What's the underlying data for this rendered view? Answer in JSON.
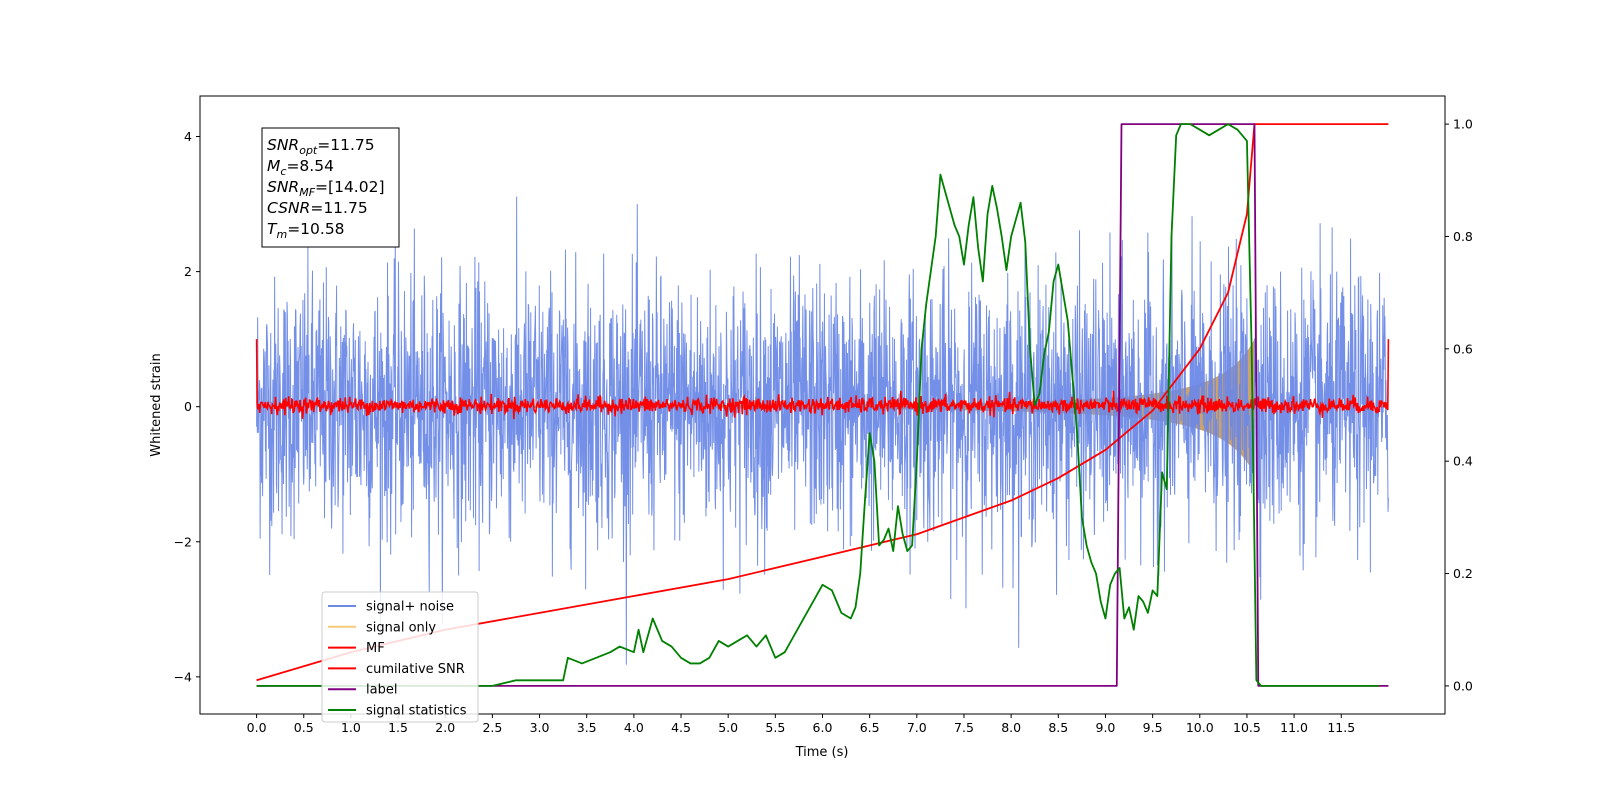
{
  "chart_data": {
    "type": "line",
    "xlabel": "Time (s)",
    "ylabel": "Whitened strain",
    "xlim": [
      -0.6,
      12.6
    ],
    "ylim": [
      -4.55,
      4.6
    ],
    "y2lim": [
      -0.05,
      1.05
    ],
    "x_ticks": [
      "0.0",
      "0.5",
      "1.0",
      "1.5",
      "2.0",
      "2.5",
      "3.0",
      "3.5",
      "4.0",
      "4.5",
      "5.0",
      "5.5",
      "6.0",
      "6.5",
      "7.0",
      "7.5",
      "8.0",
      "8.5",
      "9.0",
      "9.5",
      "10.0",
      "10.5",
      "11.0",
      "11.5"
    ],
    "y_ticks": [
      "−4",
      "−2",
      "0",
      "2",
      "4"
    ],
    "y2_ticks": [
      "0.0",
      "0.2",
      "0.4",
      "0.6",
      "0.8",
      "1.0"
    ],
    "legend_position": "lower-left",
    "annotation": {
      "lines": [
        {
          "base": "SNR",
          "sub": "opt",
          "value": "=11.75"
        },
        {
          "base": "M",
          "sub": "c",
          "value": "=8.54"
        },
        {
          "base": "SNR",
          "sub": "MF",
          "value": "=[14.02]"
        },
        {
          "base": "CSNR",
          "sub": "",
          "value": "=11.75"
        },
        {
          "base": "T",
          "sub": "m",
          "value": "=10.58"
        }
      ]
    },
    "series": [
      {
        "name": "signal+ noise",
        "axis": "left",
        "color": "#6b89e6",
        "noise_amplitude": 2.0,
        "x_range": [
          0,
          12.0
        ]
      },
      {
        "name": "signal only",
        "axis": "left",
        "color": "#f5c97a",
        "envelope_amplitude_end": 1.0,
        "merger_time": 10.58
      },
      {
        "name": "MF",
        "axis": "left",
        "color": "#ff0000",
        "noise_amplitude": 0.12,
        "edge_value": 1.0
      },
      {
        "name": "cumilative SNR",
        "axis": "right",
        "color": "#ff0000",
        "x": [
          0.0,
          1.0,
          2.0,
          3.0,
          4.0,
          5.0,
          6.0,
          7.0,
          7.5,
          8.0,
          8.5,
          9.0,
          9.5,
          10.0,
          10.3,
          10.5,
          10.58,
          12.0
        ],
        "y": [
          0.01,
          0.06,
          0.1,
          0.13,
          0.16,
          0.19,
          0.23,
          0.27,
          0.3,
          0.33,
          0.37,
          0.42,
          0.49,
          0.6,
          0.7,
          0.84,
          1.0,
          1.0
        ]
      },
      {
        "name": "label",
        "axis": "right",
        "color": "#800080",
        "x": [
          0.0,
          9.12,
          9.17,
          10.58,
          10.62,
          12.0
        ],
        "y": [
          0.0,
          0.0,
          1.0,
          1.0,
          0.0,
          0.0
        ]
      },
      {
        "name": "signal statistics",
        "axis": "right",
        "color": "#008000",
        "x": [
          0.0,
          2.5,
          2.75,
          3.0,
          3.25,
          3.3,
          3.45,
          3.6,
          3.75,
          3.85,
          4.0,
          4.05,
          4.1,
          4.2,
          4.25,
          4.3,
          4.4,
          4.5,
          4.6,
          4.7,
          4.8,
          4.9,
          5.0,
          5.1,
          5.2,
          5.3,
          5.4,
          5.5,
          5.6,
          5.7,
          5.8,
          5.9,
          6.0,
          6.1,
          6.2,
          6.3,
          6.35,
          6.4,
          6.45,
          6.5,
          6.55,
          6.6,
          6.65,
          6.7,
          6.75,
          6.8,
          6.85,
          6.9,
          6.95,
          7.0,
          7.05,
          7.1,
          7.15,
          7.2,
          7.25,
          7.3,
          7.35,
          7.4,
          7.45,
          7.5,
          7.55,
          7.6,
          7.65,
          7.7,
          7.75,
          7.8,
          7.85,
          7.9,
          7.95,
          8.0,
          8.05,
          8.1,
          8.15,
          8.2,
          8.25,
          8.3,
          8.35,
          8.4,
          8.45,
          8.5,
          8.55,
          8.6,
          8.65,
          8.7,
          8.75,
          8.8,
          8.85,
          8.9,
          8.95,
          9.0,
          9.05,
          9.1,
          9.15,
          9.2,
          9.25,
          9.3,
          9.35,
          9.4,
          9.45,
          9.5,
          9.55,
          9.6,
          9.65,
          9.7,
          9.75,
          9.8,
          9.9,
          10.0,
          10.1,
          10.2,
          10.3,
          10.4,
          10.5,
          10.55,
          10.6,
          10.65,
          10.7,
          10.8,
          11.9
        ],
        "y": [
          0.0,
          0.0,
          0.01,
          0.01,
          0.01,
          0.05,
          0.04,
          0.05,
          0.06,
          0.07,
          0.06,
          0.1,
          0.06,
          0.12,
          0.1,
          0.08,
          0.07,
          0.05,
          0.04,
          0.04,
          0.05,
          0.08,
          0.07,
          0.08,
          0.09,
          0.07,
          0.09,
          0.05,
          0.06,
          0.09,
          0.12,
          0.15,
          0.18,
          0.17,
          0.13,
          0.12,
          0.14,
          0.2,
          0.33,
          0.45,
          0.4,
          0.25,
          0.26,
          0.28,
          0.24,
          0.32,
          0.27,
          0.24,
          0.25,
          0.4,
          0.6,
          0.68,
          0.74,
          0.8,
          0.91,
          0.88,
          0.85,
          0.82,
          0.8,
          0.75,
          0.82,
          0.87,
          0.78,
          0.72,
          0.84,
          0.89,
          0.85,
          0.8,
          0.74,
          0.8,
          0.83,
          0.86,
          0.79,
          0.6,
          0.5,
          0.52,
          0.59,
          0.63,
          0.72,
          0.75,
          0.7,
          0.65,
          0.55,
          0.45,
          0.3,
          0.25,
          0.22,
          0.2,
          0.15,
          0.12,
          0.18,
          0.2,
          0.21,
          0.12,
          0.14,
          0.1,
          0.16,
          0.15,
          0.13,
          0.17,
          0.16,
          0.38,
          0.35,
          0.8,
          0.98,
          1.0,
          1.0,
          0.99,
          0.98,
          0.99,
          1.0,
          0.99,
          0.97,
          0.6,
          0.01,
          0.0,
          0.0,
          0.0,
          0.0
        ]
      }
    ]
  }
}
